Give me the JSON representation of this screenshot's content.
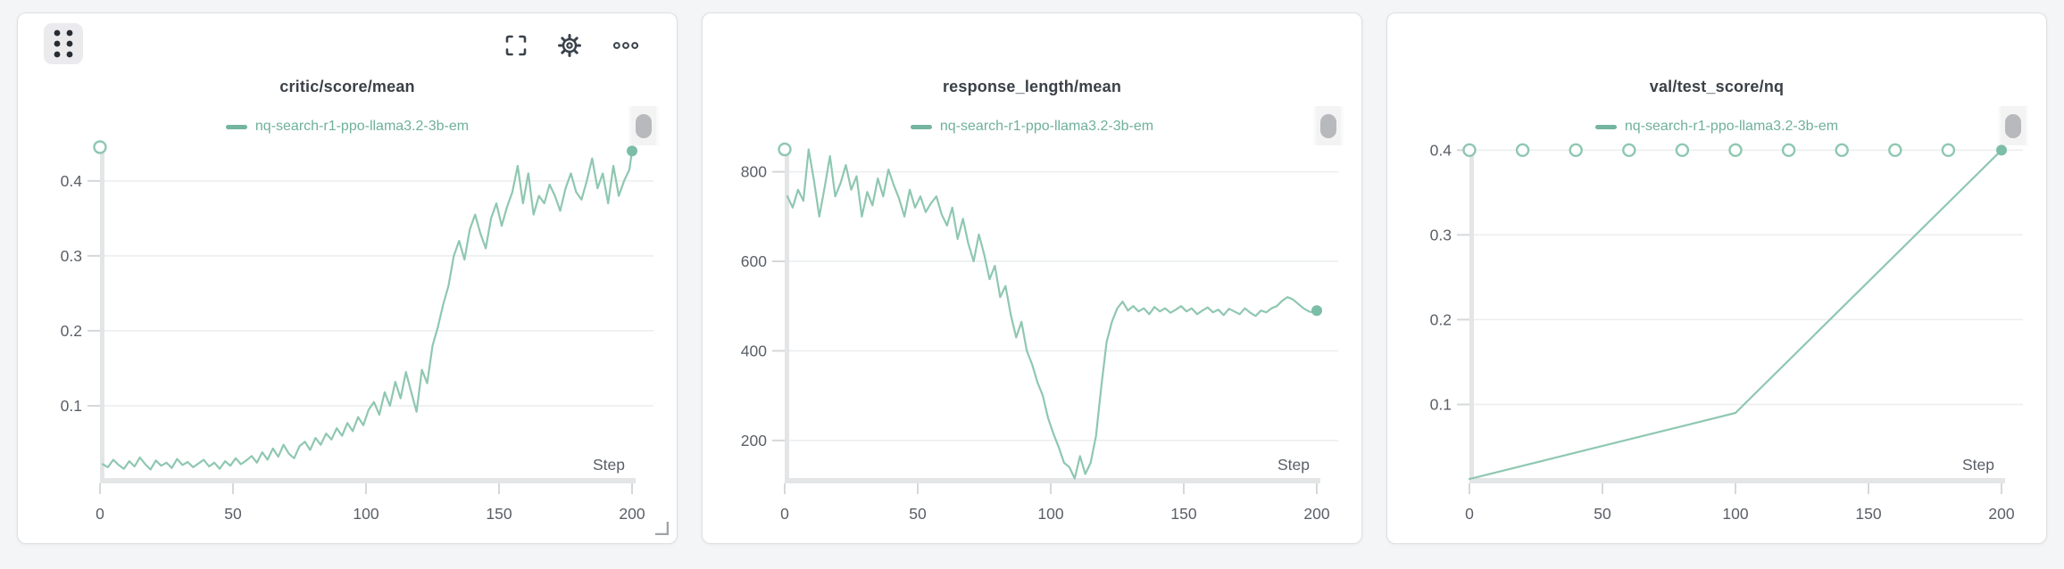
{
  "page": {
    "background": "#f4f5f6"
  },
  "colors": {
    "line": "#8fc7b1",
    "marker_fill": "#7cbda7",
    "legend_text": "#6fb09c",
    "title_text": "#3b4147",
    "tick_text": "#5a5f66",
    "axis_bar": "#e3e5e7",
    "grid_line": "#ebedee",
    "tick_mark": "#d5d8da"
  },
  "toolbar": {
    "icons": [
      "drag-handle",
      "fullscreen",
      "settings",
      "more-options"
    ]
  },
  "chart_data": [
    {
      "type": "line",
      "title": "critic/score/mean",
      "legend": [
        "nq-search-r1-ppo-llama3.2-3b-em"
      ],
      "xlabel": "Step",
      "xlim": [
        0,
        200
      ],
      "xticks": [
        0,
        50,
        100,
        150,
        200
      ],
      "yrange": [
        0,
        0.445
      ],
      "yticks": [
        [
          0.1,
          "0.1"
        ],
        [
          0.2,
          "0.2"
        ],
        [
          0.3,
          "0.3"
        ],
        [
          0.4,
          "0.4"
        ]
      ],
      "grid": true,
      "legend_position": "top-center",
      "open_markers": [
        [
          0,
          0.445
        ]
      ],
      "end_marker": [
        200,
        0.44
      ],
      "points": [
        [
          1,
          0.022
        ],
        [
          3,
          0.018
        ],
        [
          5,
          0.028
        ],
        [
          7,
          0.021
        ],
        [
          9,
          0.016
        ],
        [
          11,
          0.026
        ],
        [
          13,
          0.019
        ],
        [
          15,
          0.031
        ],
        [
          17,
          0.022
        ],
        [
          19,
          0.015
        ],
        [
          21,
          0.027
        ],
        [
          23,
          0.02
        ],
        [
          25,
          0.024
        ],
        [
          27,
          0.017
        ],
        [
          29,
          0.029
        ],
        [
          31,
          0.021
        ],
        [
          33,
          0.025
        ],
        [
          35,
          0.018
        ],
        [
          37,
          0.023
        ],
        [
          39,
          0.028
        ],
        [
          41,
          0.019
        ],
        [
          43,
          0.024
        ],
        [
          45,
          0.016
        ],
        [
          47,
          0.026
        ],
        [
          49,
          0.02
        ],
        [
          51,
          0.03
        ],
        [
          53,
          0.022
        ],
        [
          55,
          0.027
        ],
        [
          57,
          0.033
        ],
        [
          59,
          0.024
        ],
        [
          61,
          0.038
        ],
        [
          63,
          0.028
        ],
        [
          65,
          0.043
        ],
        [
          67,
          0.032
        ],
        [
          69,
          0.048
        ],
        [
          71,
          0.036
        ],
        [
          73,
          0.03
        ],
        [
          75,
          0.046
        ],
        [
          77,
          0.052
        ],
        [
          79,
          0.041
        ],
        [
          81,
          0.057
        ],
        [
          83,
          0.048
        ],
        [
          85,
          0.063
        ],
        [
          87,
          0.055
        ],
        [
          89,
          0.07
        ],
        [
          91,
          0.06
        ],
        [
          93,
          0.077
        ],
        [
          95,
          0.066
        ],
        [
          97,
          0.085
        ],
        [
          99,
          0.074
        ],
        [
          101,
          0.095
        ],
        [
          103,
          0.105
        ],
        [
          105,
          0.088
        ],
        [
          107,
          0.118
        ],
        [
          109,
          0.1
        ],
        [
          111,
          0.132
        ],
        [
          113,
          0.11
        ],
        [
          115,
          0.145
        ],
        [
          117,
          0.118
        ],
        [
          119,
          0.092
        ],
        [
          121,
          0.148
        ],
        [
          123,
          0.13
        ],
        [
          125,
          0.18
        ],
        [
          127,
          0.205
        ],
        [
          129,
          0.235
        ],
        [
          131,
          0.26
        ],
        [
          133,
          0.3
        ],
        [
          135,
          0.32
        ],
        [
          137,
          0.295
        ],
        [
          139,
          0.335
        ],
        [
          141,
          0.355
        ],
        [
          143,
          0.33
        ],
        [
          145,
          0.31
        ],
        [
          147,
          0.35
        ],
        [
          149,
          0.37
        ],
        [
          151,
          0.34
        ],
        [
          153,
          0.365
        ],
        [
          155,
          0.385
        ],
        [
          157,
          0.42
        ],
        [
          159,
          0.37
        ],
        [
          161,
          0.41
        ],
        [
          163,
          0.355
        ],
        [
          165,
          0.38
        ],
        [
          167,
          0.37
        ],
        [
          169,
          0.395
        ],
        [
          171,
          0.38
        ],
        [
          173,
          0.36
        ],
        [
          175,
          0.39
        ],
        [
          177,
          0.41
        ],
        [
          179,
          0.385
        ],
        [
          181,
          0.375
        ],
        [
          183,
          0.4
        ],
        [
          185,
          0.43
        ],
        [
          187,
          0.39
        ],
        [
          189,
          0.41
        ],
        [
          191,
          0.37
        ],
        [
          193,
          0.42
        ],
        [
          195,
          0.38
        ],
        [
          197,
          0.4
        ],
        [
          199,
          0.415
        ],
        [
          200,
          0.44
        ]
      ]
    },
    {
      "type": "line",
      "title": "response_length/mean",
      "legend": [
        "nq-search-r1-ppo-llama3.2-3b-em"
      ],
      "xlabel": "Step",
      "xlim": [
        0,
        200
      ],
      "xticks": [
        0,
        50,
        100,
        150,
        200
      ],
      "yrange": [
        110,
        855
      ],
      "yticks": [
        [
          200,
          "200"
        ],
        [
          400,
          "400"
        ],
        [
          600,
          "600"
        ],
        [
          800,
          "800"
        ]
      ],
      "grid": true,
      "legend_position": "top-center",
      "open_markers": [
        [
          0,
          850
        ]
      ],
      "end_marker": [
        200,
        490
      ],
      "points": [
        [
          1,
          745
        ],
        [
          3,
          720
        ],
        [
          5,
          760
        ],
        [
          7,
          735
        ],
        [
          9,
          850
        ],
        [
          11,
          780
        ],
        [
          13,
          700
        ],
        [
          15,
          765
        ],
        [
          17,
          835
        ],
        [
          19,
          745
        ],
        [
          21,
          775
        ],
        [
          23,
          815
        ],
        [
          25,
          760
        ],
        [
          27,
          790
        ],
        [
          29,
          700
        ],
        [
          31,
          755
        ],
        [
          33,
          725
        ],
        [
          35,
          785
        ],
        [
          37,
          745
        ],
        [
          39,
          805
        ],
        [
          41,
          770
        ],
        [
          43,
          740
        ],
        [
          45,
          700
        ],
        [
          47,
          760
        ],
        [
          49,
          720
        ],
        [
          51,
          745
        ],
        [
          53,
          710
        ],
        [
          55,
          730
        ],
        [
          57,
          745
        ],
        [
          59,
          705
        ],
        [
          61,
          680
        ],
        [
          63,
          720
        ],
        [
          65,
          650
        ],
        [
          67,
          695
        ],
        [
          69,
          640
        ],
        [
          71,
          600
        ],
        [
          73,
          660
        ],
        [
          75,
          615
        ],
        [
          77,
          560
        ],
        [
          79,
          590
        ],
        [
          81,
          520
        ],
        [
          83,
          545
        ],
        [
          85,
          480
        ],
        [
          87,
          430
        ],
        [
          89,
          465
        ],
        [
          91,
          400
        ],
        [
          93,
          370
        ],
        [
          95,
          330
        ],
        [
          97,
          300
        ],
        [
          99,
          250
        ],
        [
          101,
          215
        ],
        [
          103,
          185
        ],
        [
          105,
          150
        ],
        [
          107,
          140
        ],
        [
          109,
          115
        ],
        [
          111,
          165
        ],
        [
          113,
          125
        ],
        [
          115,
          150
        ],
        [
          117,
          210
        ],
        [
          119,
          320
        ],
        [
          121,
          420
        ],
        [
          123,
          465
        ],
        [
          125,
          495
        ],
        [
          127,
          510
        ],
        [
          129,
          490
        ],
        [
          131,
          500
        ],
        [
          133,
          488
        ],
        [
          135,
          495
        ],
        [
          137,
          482
        ],
        [
          139,
          498
        ],
        [
          141,
          488
        ],
        [
          143,
          495
        ],
        [
          145,
          485
        ],
        [
          147,
          492
        ],
        [
          149,
          500
        ],
        [
          151,
          488
        ],
        [
          153,
          495
        ],
        [
          155,
          482
        ],
        [
          157,
          490
        ],
        [
          159,
          497
        ],
        [
          161,
          486
        ],
        [
          163,
          492
        ],
        [
          165,
          480
        ],
        [
          167,
          494
        ],
        [
          169,
          488
        ],
        [
          171,
          482
        ],
        [
          173,
          495
        ],
        [
          175,
          485
        ],
        [
          177,
          478
        ],
        [
          179,
          490
        ],
        [
          181,
          486
        ],
        [
          183,
          495
        ],
        [
          185,
          500
        ],
        [
          187,
          512
        ],
        [
          189,
          520
        ],
        [
          191,
          515
        ],
        [
          193,
          505
        ],
        [
          195,
          495
        ],
        [
          197,
          488
        ],
        [
          199,
          485
        ],
        [
          200,
          490
        ]
      ]
    },
    {
      "type": "line",
      "title": "val/test_score/nq",
      "legend": [
        "nq-search-r1-ppo-llama3.2-3b-em"
      ],
      "xlabel": "Step",
      "xlim": [
        0,
        200
      ],
      "xticks": [
        0,
        50,
        100,
        150,
        200
      ],
      "yrange": [
        0.01,
        0.4035
      ],
      "yticks": [
        [
          0.1,
          "0.1"
        ],
        [
          0.2,
          "0.2"
        ],
        [
          0.3,
          "0.3"
        ],
        [
          0.4,
          "0.4"
        ]
      ],
      "grid": true,
      "legend_position": "top-center",
      "open_markers": [
        [
          0,
          0.4
        ],
        [
          20,
          0.4
        ],
        [
          40,
          0.4
        ],
        [
          60,
          0.4
        ],
        [
          80,
          0.4
        ],
        [
          100,
          0.4
        ],
        [
          120,
          0.4
        ],
        [
          140,
          0.4
        ],
        [
          160,
          0.4
        ],
        [
          180,
          0.4
        ]
      ],
      "end_marker": [
        200,
        0.4
      ],
      "points": [
        [
          0,
          0.012
        ],
        [
          100,
          0.09
        ],
        [
          200,
          0.4
        ]
      ]
    }
  ]
}
